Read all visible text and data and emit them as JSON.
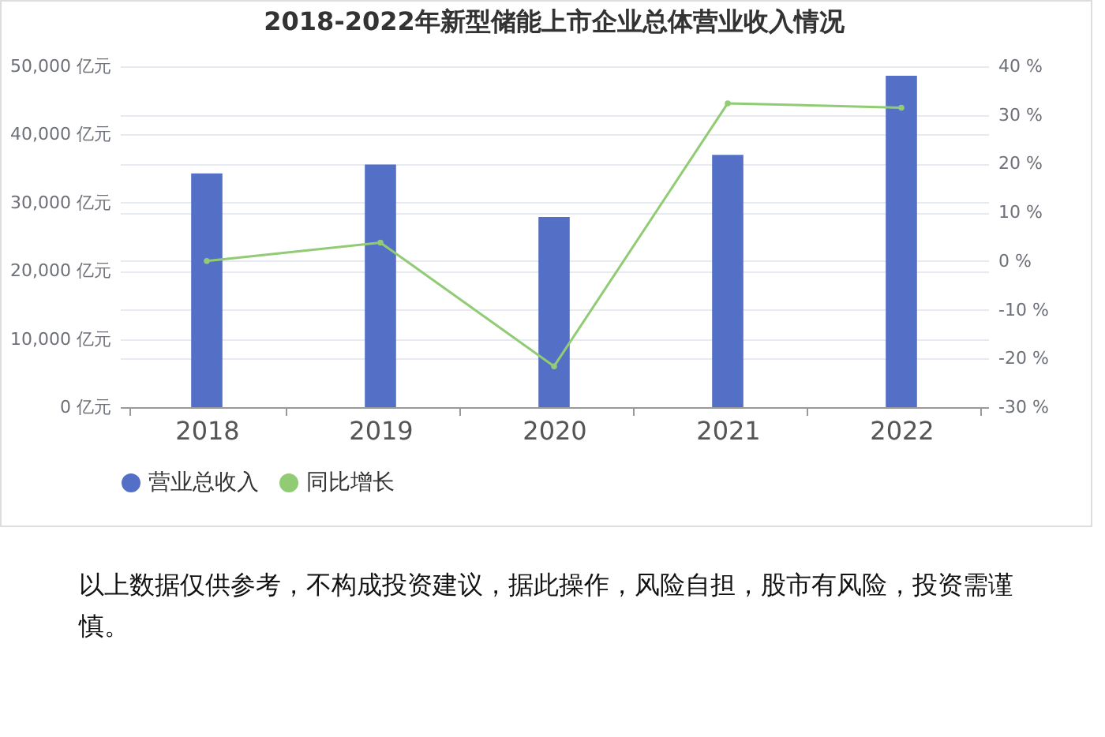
{
  "chart_data": {
    "type": "bar",
    "title": "2018-2022年新型储能上市企业总体营业收入情况",
    "categories": [
      "2018",
      "2019",
      "2020",
      "2021",
      "2022"
    ],
    "series": [
      {
        "name": "营业总收入",
        "color": "#5470c6",
        "values": [
          34300,
          35600,
          27900,
          37000,
          48600
        ]
      },
      {
        "name": "同比增长",
        "type": "line",
        "axis": "y2",
        "color": "#91cc75",
        "values": [
          0,
          3.8,
          -21.6,
          32.4,
          31.5
        ]
      }
    ],
    "ylim": [
      0,
      50000
    ],
    "yticks": [
      {
        "value": 0,
        "label": "0 亿元"
      },
      {
        "value": 10000,
        "label": "10,000 亿元"
      },
      {
        "value": 20000,
        "label": "20,000 亿元"
      },
      {
        "value": 30000,
        "label": "30,000 亿元"
      },
      {
        "value": 40000,
        "label": "40,000 亿元"
      },
      {
        "value": 50000,
        "label": "50,000 亿元"
      }
    ],
    "y2lim": [
      -30,
      40
    ],
    "y2ticks": [
      {
        "value": -30,
        "label": "-30 %"
      },
      {
        "value": -20,
        "label": "-20 %"
      },
      {
        "value": -10,
        "label": "-10 %"
      },
      {
        "value": 0,
        "label": "0 %"
      },
      {
        "value": 10,
        "label": "10 %"
      },
      {
        "value": 20,
        "label": "20 %"
      },
      {
        "value": 30,
        "label": "30 %"
      },
      {
        "value": 40,
        "label": "40 %"
      }
    ],
    "grid": "y",
    "legend": "bottom",
    "marker": "circle",
    "line_style": "solid",
    "annotations": [
      "以上数据仅供参考，不构成投资建议，据此操作，风险自担，股市有风险，投资需谨慎。"
    ]
  }
}
